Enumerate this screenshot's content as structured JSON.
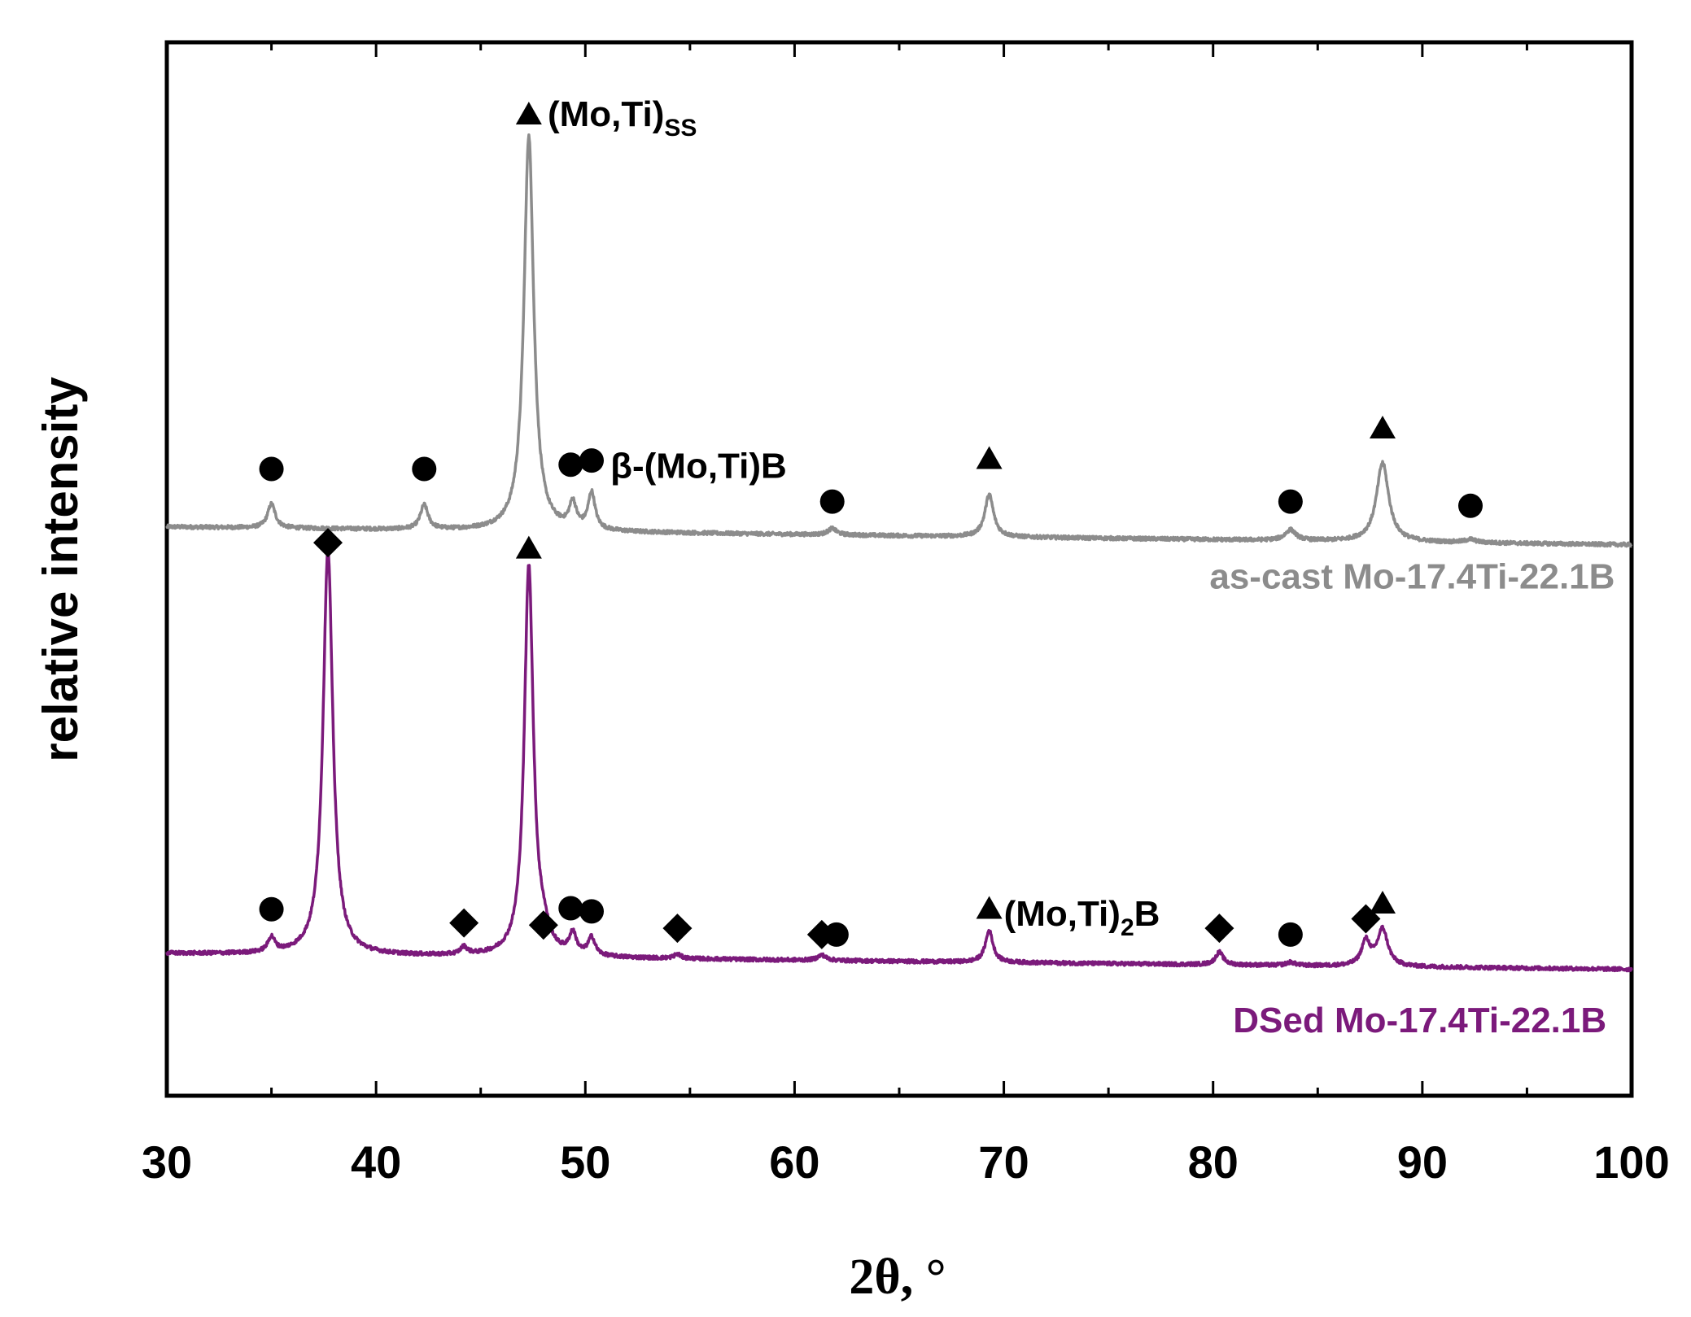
{
  "chart_data": {
    "type": "line",
    "title": "",
    "xlabel": "2θ, °",
    "ylabel": "relative intensity",
    "xlim": [
      30,
      100
    ],
    "ylim": [
      0,
      100
    ],
    "x_ticks": [
      30,
      40,
      50,
      60,
      70,
      80,
      90,
      100
    ],
    "x_tick_labels": [
      "30",
      "40",
      "50",
      "60",
      "70",
      "80",
      "90",
      "100"
    ],
    "y_ticks_shown": false,
    "series": [
      {
        "name": "as-cast Mo-17.4Ti-22.1B",
        "color": "#8c8c8c",
        "baseline_start": 54,
        "baseline_end": 52.3,
        "peaks": [
          {
            "x": 35.0,
            "h": 2.3,
            "w": 0.22
          },
          {
            "x": 42.3,
            "h": 2.3,
            "w": 0.22
          },
          {
            "x": 47.3,
            "h": 37.5,
            "w": 0.28
          },
          {
            "x": 49.4,
            "h": 2.4,
            "w": 0.2
          },
          {
            "x": 50.3,
            "h": 3.5,
            "w": 0.2
          },
          {
            "x": 61.8,
            "h": 0.6,
            "w": 0.25
          },
          {
            "x": 69.3,
            "h": 4.0,
            "w": 0.25
          },
          {
            "x": 83.7,
            "h": 1.0,
            "w": 0.3
          },
          {
            "x": 88.1,
            "h": 7.5,
            "w": 0.35
          },
          {
            "x": 92.3,
            "h": 0.3,
            "w": 0.3
          }
        ]
      },
      {
        "name": "DSed Mo-17.4Ti-22.1B",
        "color": "#7b1a7b",
        "baseline_start": 13.5,
        "baseline_end": 12,
        "peaks": [
          {
            "x": 35.0,
            "h": 1.4,
            "w": 0.2
          },
          {
            "x": 37.7,
            "h": 38.5,
            "w": 0.28
          },
          {
            "x": 44.2,
            "h": 0.7,
            "w": 0.2
          },
          {
            "x": 47.3,
            "h": 37.0,
            "w": 0.26
          },
          {
            "x": 48.0,
            "h": 1.5,
            "w": 0.3
          },
          {
            "x": 49.4,
            "h": 2.0,
            "w": 0.2
          },
          {
            "x": 50.3,
            "h": 1.7,
            "w": 0.2
          },
          {
            "x": 54.4,
            "h": 0.4,
            "w": 0.2
          },
          {
            "x": 61.3,
            "h": 0.5,
            "w": 0.25
          },
          {
            "x": 69.3,
            "h": 3.0,
            "w": 0.22
          },
          {
            "x": 80.3,
            "h": 1.2,
            "w": 0.22
          },
          {
            "x": 83.7,
            "h": 0.3,
            "w": 0.25
          },
          {
            "x": 87.3,
            "h": 2.3,
            "w": 0.25
          },
          {
            "x": 88.1,
            "h": 3.5,
            "w": 0.3
          }
        ]
      }
    ],
    "markers": [
      {
        "shape": "triangle",
        "x": 47.3,
        "y": 93.2
      },
      {
        "shape": "circle",
        "x": 35.0,
        "y": 59.5
      },
      {
        "shape": "circle",
        "x": 42.3,
        "y": 59.5
      },
      {
        "shape": "circle",
        "x": 49.3,
        "y": 59.9
      },
      {
        "shape": "circle",
        "x": 50.3,
        "y": 60.3
      },
      {
        "shape": "triangle",
        "x": 69.3,
        "y": 60.5
      },
      {
        "shape": "circle",
        "x": 61.8,
        "y": 56.4
      },
      {
        "shape": "circle",
        "x": 83.7,
        "y": 56.4
      },
      {
        "shape": "triangle",
        "x": 88.1,
        "y": 63.4
      },
      {
        "shape": "circle",
        "x": 92.3,
        "y": 56.0
      },
      {
        "shape": "diamond",
        "x": 37.7,
        "y": 52.5
      },
      {
        "shape": "triangle",
        "x": 47.3,
        "y": 52.0
      },
      {
        "shape": "circle",
        "x": 35.0,
        "y": 17.7
      },
      {
        "shape": "diamond",
        "x": 44.2,
        "y": 16.4
      },
      {
        "shape": "diamond",
        "x": 48.0,
        "y": 16.2
      },
      {
        "shape": "circle",
        "x": 49.3,
        "y": 17.8
      },
      {
        "shape": "circle",
        "x": 50.3,
        "y": 17.5
      },
      {
        "shape": "diamond",
        "x": 54.4,
        "y": 15.9
      },
      {
        "shape": "diamond",
        "x": 61.3,
        "y": 15.3
      },
      {
        "shape": "circle",
        "x": 62.0,
        "y": 15.3
      },
      {
        "shape": "triangle",
        "x": 69.3,
        "y": 17.8
      },
      {
        "shape": "diamond",
        "x": 80.3,
        "y": 15.9
      },
      {
        "shape": "circle",
        "x": 83.7,
        "y": 15.3
      },
      {
        "shape": "diamond",
        "x": 87.3,
        "y": 16.8
      },
      {
        "shape": "triangle",
        "x": 88.1,
        "y": 18.3
      }
    ],
    "annotations": [
      {
        "text": "(Mo,Ti)",
        "sub": "SS",
        "x": 48.2,
        "y": 93.2
      },
      {
        "text": "β-(Mo,Ti)B",
        "sub": "",
        "x": 51.2,
        "y": 59.8
      },
      {
        "text": "(Mo,Ti)",
        "sub": "2",
        "after": "B",
        "x": 70.0,
        "y": 17.3
      }
    ],
    "legend_entries": [
      {
        "text": "as-cast Mo-17.4Ti-22.1B",
        "color": "#8c8c8c",
        "x": 99.2,
        "y": 49.3
      },
      {
        "text": "DSed Mo-17.4Ti-22.1B",
        "color": "#7b1a7b",
        "x": 98.8,
        "y": 7.2
      }
    ]
  }
}
